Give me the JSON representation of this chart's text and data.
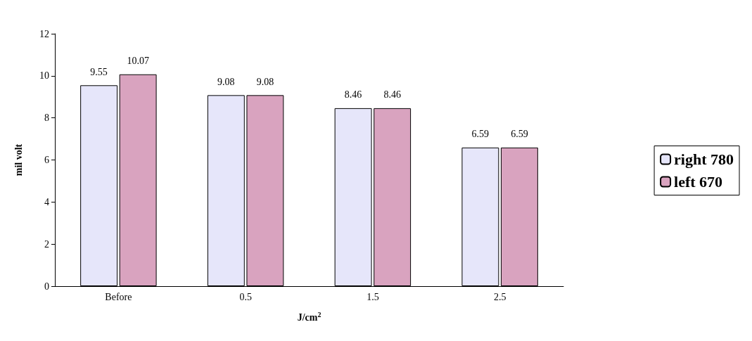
{
  "chart_data": {
    "type": "bar",
    "xlabel": "J/cm$^{2}$",
    "ylabel": "mil volt",
    "categories": [
      "Before",
      "0.5",
      "1.5",
      "2.5"
    ],
    "series": [
      {
        "name": "right 780",
        "color": "#e6e6fa",
        "values": [
          9.55,
          9.08,
          8.46,
          6.59
        ]
      },
      {
        "name": "left 670",
        "color": "#d9a3bf",
        "values": [
          10.07,
          9.08,
          8.46,
          6.59
        ]
      }
    ],
    "ylim": [
      0,
      12
    ],
    "yticks": [
      0,
      2,
      4,
      6,
      8,
      10,
      12
    ],
    "grid": false,
    "legend": "right",
    "data_labels": true
  }
}
